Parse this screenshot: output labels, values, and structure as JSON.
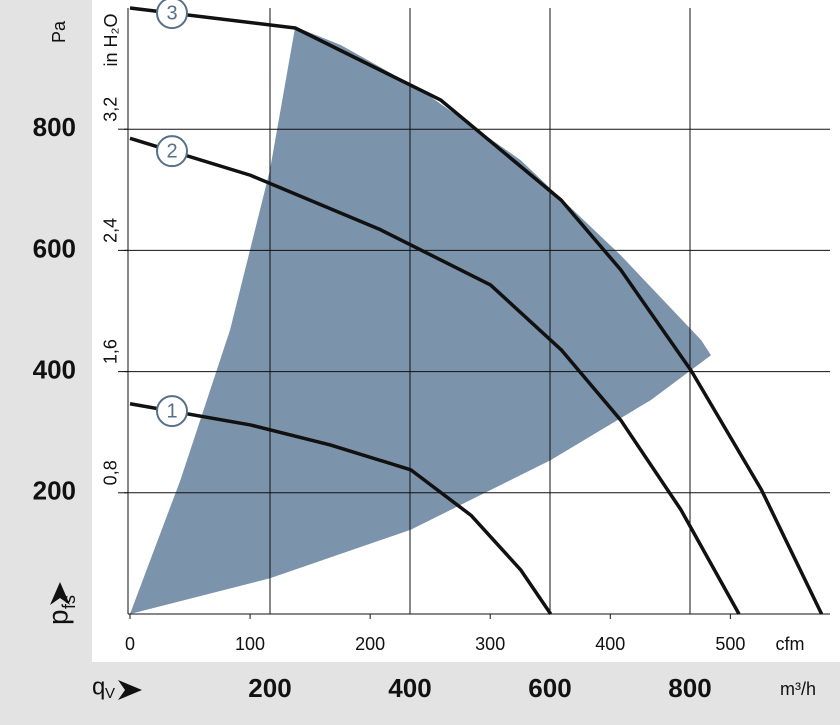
{
  "chart_data": {
    "type": "line",
    "y_label": {
      "main": "p",
      "sub": "fs"
    },
    "x_label": {
      "main": "q",
      "sub": "V"
    },
    "y_unit": "Pa",
    "y2_unit": "in H₂O",
    "x_unit": "m³/h",
    "x2_unit": "cfm",
    "xlim": [
      0,
      1000
    ],
    "xticks": [
      200,
      400,
      600,
      800
    ],
    "x2lim": [
      0,
      583
    ],
    "x2ticks": [
      0,
      100,
      200,
      300,
      400,
      500
    ],
    "ylim": [
      0,
      1000
    ],
    "yticks": [
      200,
      400,
      600,
      800
    ],
    "y2lim": [
      0,
      4.0
    ],
    "y2ticks": [
      {
        "value": 0.8,
        "label": "0,8"
      },
      {
        "value": 1.6,
        "label": "1,6"
      },
      {
        "value": 2.4,
        "label": "2,4"
      },
      {
        "value": 3.2,
        "label": "3,2"
      }
    ],
    "grid": true,
    "range": {
      "color": "#7b93ab",
      "x": [
        0,
        200,
        401,
        601,
        744,
        830,
        816,
        701,
        558,
        415,
        301,
        236,
        200,
        143,
        72
      ],
      "y": [
        0,
        59,
        139,
        254,
        353,
        427,
        452,
        592,
        749,
        865,
        939,
        969,
        733,
        469,
        221
      ]
    },
    "series": [
      {
        "name": "1",
        "color": "#111111",
        "x": [
          0,
          172,
          286,
          401,
          487,
          558,
          601
        ],
        "values": [
          347,
          312,
          279,
          238,
          163,
          73,
          0
        ]
      },
      {
        "name": "2",
        "color": "#111111",
        "x": [
          0,
          172,
          358,
          515,
          616,
          701,
          787,
          870
        ],
        "values": [
          785,
          724,
          634,
          543,
          436,
          320,
          172,
          0
        ]
      },
      {
        "name": "3",
        "color": "#111111",
        "x": [
          0,
          236,
          444,
          616,
          701,
          802,
          902,
          988
        ],
        "values": [
          1000,
          967,
          848,
          683,
          568,
          401,
          205,
          0
        ]
      }
    ]
  }
}
